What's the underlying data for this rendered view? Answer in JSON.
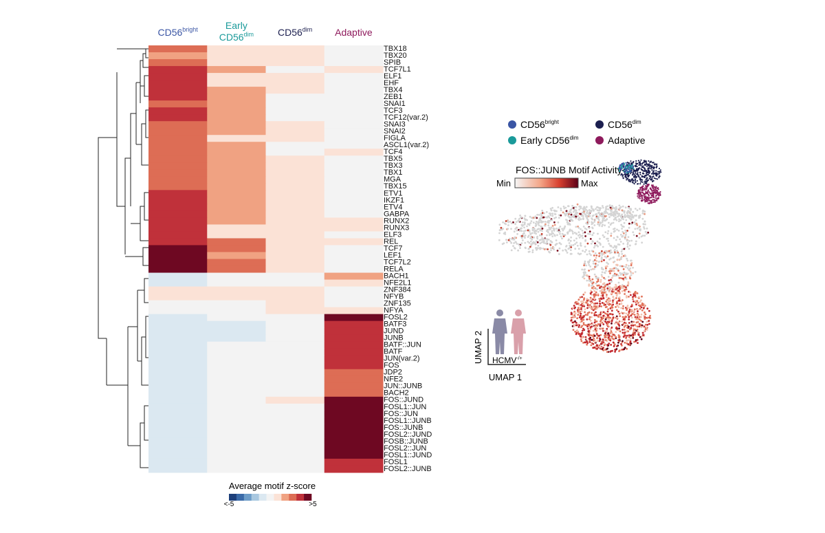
{
  "chart_data": {
    "type": "heatmap",
    "columns": [
      {
        "label": [
          "CD56"
        ],
        "sup": "bright",
        "color": "#3a55a4"
      },
      {
        "label": [
          "Early",
          "CD56"
        ],
        "sup": "dim",
        "color": "#1a9a9a"
      },
      {
        "label": [
          "CD56"
        ],
        "sup": "dim",
        "color": "#1c1f4f"
      },
      {
        "label": [
          "Adaptive"
        ],
        "color": "#8e1a5c"
      }
    ],
    "rows": [
      "TBX18",
      "TBX20",
      "SPIB",
      "TCF7L1",
      "ELF1",
      "EHF",
      "TBX4",
      "ZEB1",
      "SNAI1",
      "TCF3",
      "TCF12(var.2)",
      "SNAI3",
      "SNAI2",
      "FIGLA",
      "ASCL1(var.2)",
      "TCF4",
      "TBX5",
      "TBX3",
      "TBX1",
      "MGA",
      "TBX15",
      "ETV1",
      "IKZF1",
      "ETV4",
      "GABPA",
      "RUNX2",
      "RUNX3",
      "ELF3",
      "REL",
      "TCF7",
      "LEF1",
      "TCF7L2",
      "RELA",
      "BACH1",
      "NFE2L1",
      "ZNF384",
      "NFYB",
      "ZNF135",
      "NFYA",
      "FOSL2",
      "BATF3",
      "JUND",
      "JUNB",
      "BATF::JUN",
      "BATF",
      "JUN(var.2)",
      "FOS",
      "JDP2",
      "NFE2",
      "JUN::JUNB",
      "BACH2",
      "FOS::JUND",
      "FOSL1::JUN",
      "FOS::JUN",
      "FOSL1::JUNB",
      "FOS::JUNB",
      "FOSL2::JUND",
      "FOSB::JUNB",
      "FOSL2::JUN",
      "FOSL1::JUND",
      "FOSL1",
      "FOSL2::JUNB"
    ],
    "values": [
      [
        3,
        1,
        1,
        0
      ],
      [
        2,
        1,
        1,
        0
      ],
      [
        3,
        1,
        1,
        0
      ],
      [
        4,
        2,
        0,
        1
      ],
      [
        4,
        1,
        1,
        0
      ],
      [
        4,
        1,
        1,
        0
      ],
      [
        4,
        2,
        1,
        0
      ],
      [
        4,
        2,
        0,
        0
      ],
      [
        3,
        2,
        0,
        0
      ],
      [
        4,
        2,
        0,
        0
      ],
      [
        4,
        2,
        0,
        0
      ],
      [
        3,
        2,
        1,
        0
      ],
      [
        3,
        2,
        1,
        0
      ],
      [
        3,
        1,
        1,
        0
      ],
      [
        3,
        2,
        0,
        0
      ],
      [
        3,
        2,
        0,
        1
      ],
      [
        3,
        2,
        1,
        0
      ],
      [
        3,
        2,
        1,
        0
      ],
      [
        3,
        2,
        1,
        0
      ],
      [
        3,
        2,
        1,
        0
      ],
      [
        3,
        2,
        1,
        0
      ],
      [
        4,
        2,
        1,
        0
      ],
      [
        4,
        2,
        1,
        0
      ],
      [
        4,
        2,
        1,
        0
      ],
      [
        4,
        2,
        1,
        0
      ],
      [
        4,
        2,
        1,
        1
      ],
      [
        4,
        1,
        1,
        1
      ],
      [
        4,
        1,
        1,
        0
      ],
      [
        4,
        3,
        1,
        1
      ],
      [
        5,
        3,
        1,
        0
      ],
      [
        5,
        2,
        1,
        0
      ],
      [
        5,
        3,
        1,
        0
      ],
      [
        5,
        3,
        1,
        0
      ],
      [
        -1,
        0,
        0,
        2
      ],
      [
        -1,
        0,
        0,
        1
      ],
      [
        1,
        1,
        1,
        0
      ],
      [
        1,
        1,
        1,
        0
      ],
      [
        0,
        0,
        1,
        0
      ],
      [
        0,
        0,
        1,
        1
      ],
      [
        -1,
        0,
        0,
        5
      ],
      [
        -1,
        -1,
        0,
        4
      ],
      [
        -1,
        -1,
        0,
        4
      ],
      [
        -1,
        -1,
        0,
        4
      ],
      [
        -1,
        0,
        0,
        4
      ],
      [
        -1,
        0,
        0,
        4
      ],
      [
        -1,
        0,
        0,
        4
      ],
      [
        -1,
        0,
        0,
        4
      ],
      [
        -1,
        0,
        0,
        3
      ],
      [
        -1,
        0,
        0,
        3
      ],
      [
        -1,
        0,
        0,
        3
      ],
      [
        -1,
        0,
        0,
        3
      ],
      [
        -1,
        0,
        1,
        5
      ],
      [
        -1,
        0,
        0,
        5
      ],
      [
        -1,
        0,
        0,
        5
      ],
      [
        -1,
        0,
        0,
        5
      ],
      [
        -1,
        0,
        0,
        5
      ],
      [
        -1,
        0,
        0,
        5
      ],
      [
        -1,
        0,
        0,
        5
      ],
      [
        -1,
        0,
        0,
        5
      ],
      [
        -1,
        0,
        0,
        5
      ],
      [
        -1,
        0,
        0,
        4
      ],
      [
        -1,
        0,
        0,
        4
      ]
    ],
    "colorbar": {
      "title": "Average motif z-score",
      "min_label": "<-5",
      "max_label": ">5",
      "range": [
        -5,
        5
      ],
      "colors": [
        "#1d3f7a",
        "#3a6aa8",
        "#6d9cc8",
        "#a9c8e0",
        "#dbe8f1",
        "#f3f3f3",
        "#fbe2d6",
        "#f0a282",
        "#dd6d55",
        "#c0313a",
        "#6e0822"
      ]
    }
  },
  "umap": {
    "legend": [
      {
        "name": "CD56",
        "sup": "bright",
        "color": "#3a55a4"
      },
      {
        "name": "CD56",
        "sup": "dim",
        "color": "#1c1f4f"
      },
      {
        "name": "Early CD56",
        "sup": "dim",
        "color": "#1a9a9a"
      },
      {
        "name": "Adaptive",
        "color": "#8e1a5c"
      }
    ],
    "color_title": "FOS::JUNB Motif Activity",
    "min_label": "Min",
    "max_label": "Max",
    "x_label": "UMAP 1",
    "y_label": "UMAP 2",
    "inset_label": "HCMV",
    "inset_sup": "-/+"
  }
}
